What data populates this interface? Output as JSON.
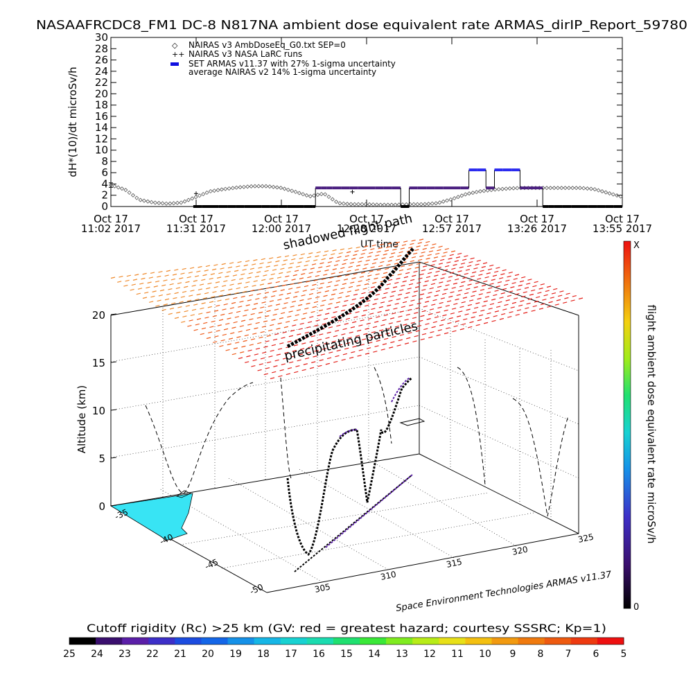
{
  "header": {
    "title": "NASAAFRCDC8_FM1 DC-8   N817NA ambient dose equivalent rate ARMAS_dirIP_Report_59780"
  },
  "chart_data": [
    {
      "type": "scatter",
      "ylabel": "dH*(10)/dt microSv/h",
      "xlabel": "UT time",
      "ylim": [
        0,
        30
      ],
      "yticks": [
        0,
        2,
        4,
        6,
        8,
        10,
        12,
        14,
        16,
        18,
        20,
        22,
        24,
        26,
        28,
        30
      ],
      "xticks": [
        {
          "line1": "Oct 17",
          "line2": "11:02 2017"
        },
        {
          "line1": "Oct 17",
          "line2": "11:31 2017"
        },
        {
          "line1": "Oct 17",
          "line2": "12:00 2017"
        },
        {
          "line1": "Oct 17",
          "line2": "12:28 2017"
        },
        {
          "line1": "Oct 17",
          "line2": "12:57 2017"
        },
        {
          "line1": "Oct 17",
          "line2": "13:26 2017"
        },
        {
          "line1": "Oct 17",
          "line2": "13:55 2017"
        }
      ],
      "legend": {
        "placement": "top-left",
        "entries": [
          {
            "symbol": "◇",
            "label": "NAIRAS v3 AmbDoseEq_G0.txt SEP=0"
          },
          {
            "symbol": "++",
            "label": "NAIRAS v3 NASA LaRC runs"
          },
          {
            "symbol": "▬",
            "label": "SET ARMAS v11.37 with 27% 1-sigma uncertainty",
            "color": "#1010e0"
          },
          {
            "symbol": "",
            "label": "average NAIRAS v2 14% 1-sigma uncertainty"
          }
        ]
      },
      "series": [
        {
          "name": "NAIRAS v3 AmbDoseEq_G0.txt SEP=0",
          "x_minutes": [
            0,
            5,
            10,
            15,
            20,
            25,
            30,
            35,
            40,
            45,
            50,
            55,
            60,
            65,
            70,
            75,
            80,
            85,
            90,
            95,
            100,
            105,
            110,
            115,
            120,
            125,
            130,
            135,
            140,
            145,
            150,
            155,
            160,
            165,
            170,
            175,
            180
          ],
          "y": [
            3.8,
            3.0,
            1.2,
            0.7,
            0.5,
            0.7,
            1.7,
            2.7,
            3.1,
            3.4,
            3.6,
            3.6,
            3.3,
            2.6,
            1.8,
            2.3,
            0.6,
            0.4,
            0.4,
            0.3,
            0.3,
            0.4,
            0.4,
            0.6,
            1.3,
            2.2,
            2.7,
            3.0,
            3.2,
            3.3,
            3.3,
            3.3,
            3.3,
            3.3,
            3.1,
            2.4,
            1.7
          ]
        },
        {
          "name": "NAIRAS v3 NASA LaRC runs",
          "x_minutes": [
            30,
            85
          ],
          "y": [
            2.3,
            2.6
          ]
        },
        {
          "name": "SET ARMAS v11.37 with 27% 1-sigma uncertainty",
          "x_minutes": [
            29,
            32,
            35,
            38,
            41,
            44,
            47,
            50,
            53,
            56,
            59,
            62,
            65,
            68,
            71,
            72,
            74,
            76,
            78,
            80,
            81,
            84,
            87,
            90,
            93,
            96,
            99,
            102,
            105,
            108,
            111,
            114,
            117,
            120,
            123,
            126,
            129,
            132,
            135,
            138,
            141,
            144,
            147,
            150,
            152,
            154,
            156,
            159,
            162,
            165,
            168,
            171,
            174,
            177,
            180
          ],
          "y": [
            0,
            0,
            0,
            0,
            0,
            0,
            0,
            0,
            0,
            0,
            0,
            0,
            0,
            0,
            0,
            3.3,
            3.3,
            3.3,
            3.3,
            3.3,
            3.3,
            3.3,
            3.3,
            3.3,
            3.3,
            3.3,
            3.3,
            0,
            3.3,
            3.3,
            3.3,
            3.3,
            3.3,
            3.3,
            3.3,
            6.5,
            6.5,
            3.3,
            6.5,
            6.5,
            6.5,
            3.3,
            3.3,
            3.3,
            0,
            0,
            0,
            0,
            0,
            0,
            0,
            0,
            0,
            0,
            0
          ]
        }
      ]
    },
    {
      "type": "scatter",
      "title": "Cutoff rigidity (Rc) >25 km (GV: red = greatest hazard; courtesy SSSRC; Kp=1)",
      "zlabel": "Altitude (km)",
      "zticks": [
        0,
        5,
        10,
        15,
        20
      ],
      "lat_ticks": [
        -35,
        -40,
        -45,
        -50
      ],
      "lon_ticks": [
        305,
        310,
        315,
        320,
        325
      ],
      "annotations": [
        "shadowed flight path",
        "UT time",
        "precipitating particles"
      ],
      "colorbar_rc_ticks": [
        25,
        24,
        23,
        22,
        21,
        20,
        19,
        18,
        17,
        16,
        15,
        14,
        13,
        12,
        11,
        10,
        9,
        8,
        7,
        6,
        5
      ],
      "colorbar_rc_colors": [
        "#000000",
        "#3a0f6e",
        "#5b1fa8",
        "#3d2fc8",
        "#1c4ce0",
        "#1466e8",
        "#1591e8",
        "#16b6e6",
        "#18d2d2",
        "#1bdcb0",
        "#20e070",
        "#3ae838",
        "#80ec20",
        "#b8ec18",
        "#e8e018",
        "#f4c010",
        "#f29a10",
        "#f07a0e",
        "#ee5a10",
        "#ee3a10",
        "#ee1010"
      ],
      "colorbar_dose": {
        "label": "flight ambient dose equivalent rate microSv/h",
        "top": "X",
        "bottom": "0"
      },
      "credit": "Space Environment Technologies ARMAS v11.37"
    }
  ]
}
